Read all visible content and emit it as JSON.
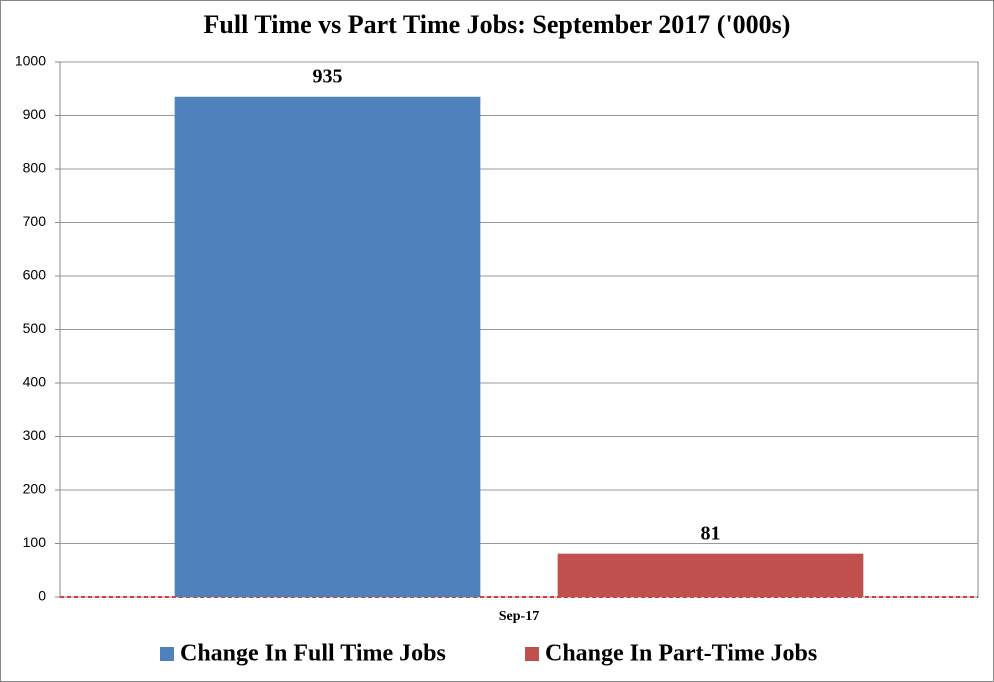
{
  "chart_data": {
    "type": "bar",
    "title": "Full Time vs Part Time Jobs: September 2017 ('000s)",
    "categories": [
      "Sep-17"
    ],
    "series": [
      {
        "name": "Change In Full Time Jobs",
        "color": "#4f81bd",
        "values": [
          935
        ]
      },
      {
        "name": "Change In Part-Time Jobs",
        "color": "#c0504d",
        "values": [
          81
        ]
      }
    ],
    "ylim": [
      0,
      1000
    ],
    "yticks": [
      0,
      100,
      200,
      300,
      400,
      500,
      600,
      700,
      800,
      900,
      1000
    ],
    "grid": true,
    "legend": "bottom"
  }
}
